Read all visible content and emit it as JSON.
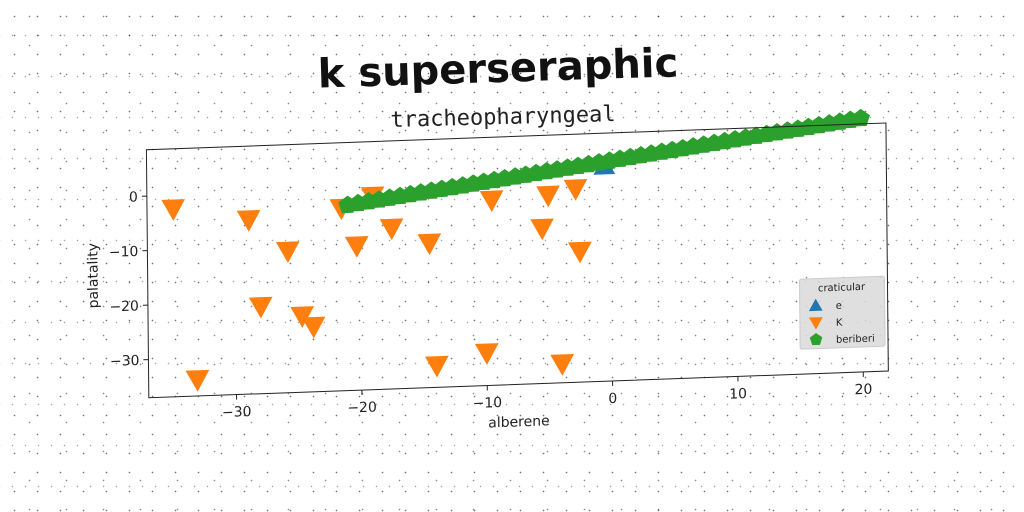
{
  "chart_data": {
    "type": "scatter",
    "title": "k superseraphic",
    "subtitle": "tracheopharyngeal",
    "xlabel": "alberene",
    "ylabel": "palatality",
    "xlim": [
      -37,
      22
    ],
    "ylim": [
      -37,
      8.5
    ],
    "xticks": [
      -30,
      -20,
      -10,
      0,
      10,
      20
    ],
    "yticks": [
      0,
      -10,
      -20,
      -30
    ],
    "grid": false,
    "legend": {
      "title": "craticular",
      "placement": "lower-right"
    },
    "series": [
      {
        "name": "e",
        "color": "#1f77b4",
        "marker": "triangle-up",
        "points": [
          [
            -0.5,
            2.5
          ]
        ]
      },
      {
        "name": "K",
        "color": "#ff7f0e",
        "marker": "triangle-down",
        "points": [
          [
            -34.9,
            -2.5
          ],
          [
            -33.1,
            -34.0
          ],
          [
            -28.9,
            -5.0
          ],
          [
            -28.0,
            -21.0
          ],
          [
            -25.8,
            -11.0
          ],
          [
            -24.7,
            -23.0
          ],
          [
            -23.8,
            -25.0
          ],
          [
            -21.5,
            -3.5
          ],
          [
            -20.3,
            -10.5
          ],
          [
            -19.0,
            -1.5
          ],
          [
            -17.5,
            -7.5
          ],
          [
            -14.5,
            -10.5
          ],
          [
            -14.0,
            -33.0
          ],
          [
            -10.0,
            -31.0
          ],
          [
            -9.5,
            -3.0
          ],
          [
            -5.5,
            -8.5
          ],
          [
            -5.0,
            -2.5
          ],
          [
            -4.0,
            -33.5
          ],
          [
            -2.8,
            -1.5
          ],
          [
            -2.5,
            -13.0
          ]
        ]
      },
      {
        "name": "beriberi",
        "color": "#2ca02c",
        "marker": "pentagon",
        "line": {
          "x_start": -21.0,
          "y_start": -3.0,
          "x_end": 20.0,
          "y_end": 9.5,
          "count": 50
        }
      }
    ]
  }
}
